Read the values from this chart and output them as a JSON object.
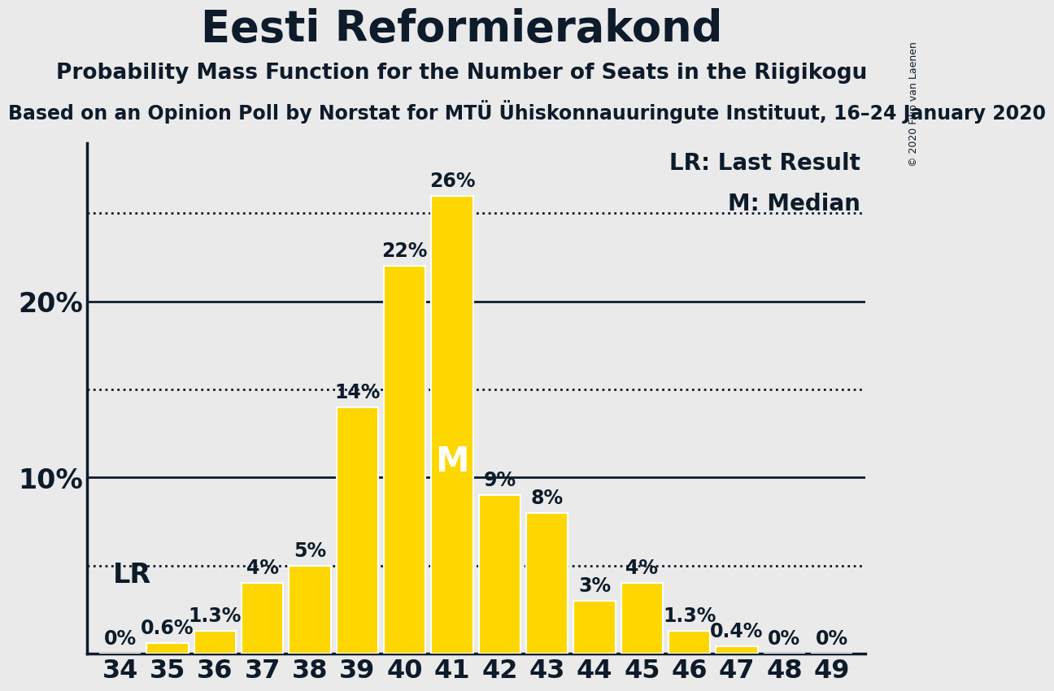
{
  "title": "Eesti Reformierakond",
  "subtitle": "Probability Mass Function for the Number of Seats in the Riigikogu",
  "subtitle2": "Based on an Opinion Poll by Norstat for MTÜ Ühiskonnauuringute Instituut, 16–24 January 2020",
  "copyright": "© 2020 Filip van Laenen",
  "seats": [
    34,
    35,
    36,
    37,
    38,
    39,
    40,
    41,
    42,
    43,
    44,
    45,
    46,
    47,
    48,
    49
  ],
  "probabilities": [
    0.0,
    0.6,
    1.3,
    4.0,
    5.0,
    14.0,
    22.0,
    26.0,
    9.0,
    8.0,
    3.0,
    4.0,
    1.3,
    0.4,
    0.0,
    0.0
  ],
  "bar_color": "#FFD700",
  "bar_edge_color": "#FFFFFF",
  "background_color": "#EAEAEA",
  "text_color": "#0D1B2A",
  "LR_seat": 34,
  "median_seat": 41,
  "yticks": [
    10,
    20
  ],
  "dotted_lines": [
    5,
    15,
    25
  ],
  "solid_lines": [
    10,
    20
  ],
  "title_fontsize": 38,
  "subtitle_fontsize": 19,
  "subtitle2_fontsize": 17,
  "ytick_fontsize": 24,
  "xtick_fontsize": 23,
  "legend_fontsize": 20,
  "bar_label_fontsize": 17,
  "LR_label_fontsize": 24,
  "median_label_fontsize": 30,
  "ylim": [
    0,
    29
  ],
  "xlim_left": 33.3,
  "xlim_right": 49.7
}
